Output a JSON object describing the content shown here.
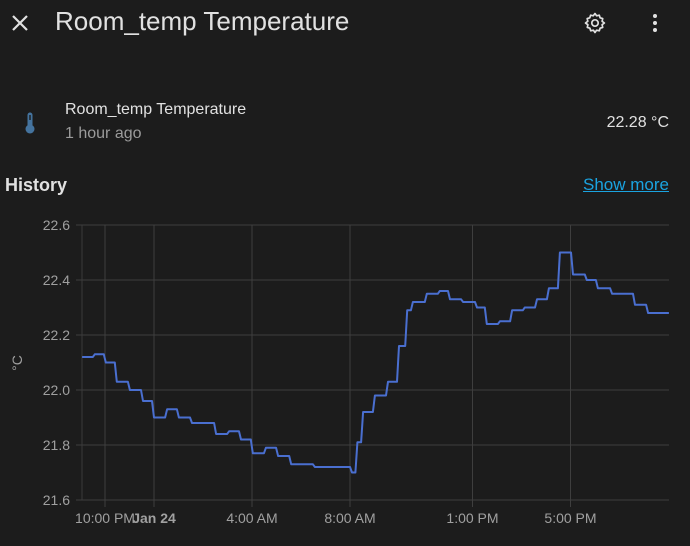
{
  "header": {
    "title": "Room_temp Temperature",
    "close_icon": "close-icon",
    "settings_icon": "gear-icon",
    "menu_icon": "dots-vertical-icon"
  },
  "entity": {
    "icon": "thermometer-icon",
    "icon_color": "#44739e",
    "name": "Room_temp Temperature",
    "last_changed": "1 hour ago",
    "state": "22.28 °C"
  },
  "history": {
    "title": "History",
    "show_more": "Show more",
    "link_color": "#1aa3e0"
  },
  "chart_data": {
    "type": "line",
    "step": true,
    "line_color": "#4a6fd0",
    "ylabel": "°C",
    "ylim": [
      21.6,
      22.6
    ],
    "y_ticks": [
      "22.6",
      "22.4",
      "22.2",
      "22.0",
      "21.8",
      "21.6"
    ],
    "xlim": [
      "Jan 23 21:04",
      "Jan 24 21:01"
    ],
    "x_ticks": [
      {
        "t": "Jan 23 22:00",
        "label": "10:00 PM",
        "bold": false
      },
      {
        "t": "Jan 24 00:00",
        "label": "Jan 24",
        "bold": true
      },
      {
        "t": "Jan 24 04:00",
        "label": "4:00 AM",
        "bold": false
      },
      {
        "t": "Jan 24 08:00",
        "label": "8:00 AM",
        "bold": false
      },
      {
        "t": "Jan 24 13:00",
        "label": "1:00 PM",
        "bold": false
      },
      {
        "t": "Jan 24 17:00",
        "label": "5:00 PM",
        "bold": false
      }
    ],
    "grid": true,
    "points": [
      [
        "Jan 23 21:04",
        22.12
      ],
      [
        "Jan 23 21:35",
        22.13
      ],
      [
        "Jan 23 22:02",
        22.1
      ],
      [
        "Jan 23 22:29",
        22.03
      ],
      [
        "Jan 23 23:01",
        22.0
      ],
      [
        "Jan 23 23:33",
        21.96
      ],
      [
        "Jan 24 00:00",
        21.9
      ],
      [
        "Jan 24 00:32",
        21.93
      ],
      [
        "Jan 24 01:01",
        21.9
      ],
      [
        "Jan 24 01:33",
        21.88
      ],
      [
        "Jan 24 02:32",
        21.84
      ],
      [
        "Jan 24 03:04",
        21.85
      ],
      [
        "Jan 24 03:33",
        21.82
      ],
      [
        "Jan 24 04:02",
        21.77
      ],
      [
        "Jan 24 04:34",
        21.79
      ],
      [
        "Jan 24 05:04",
        21.76
      ],
      [
        "Jan 24 05:36",
        21.73
      ],
      [
        "Jan 24 06:34",
        21.72
      ],
      [
        "Jan 24 08:05",
        21.7
      ],
      [
        "Jan 24 08:18",
        21.81
      ],
      [
        "Jan 24 08:32",
        21.92
      ],
      [
        "Jan 24 09:01",
        21.98
      ],
      [
        "Jan 24 09:33",
        22.03
      ],
      [
        "Jan 24 10:00",
        22.16
      ],
      [
        "Jan 24 10:20",
        22.29
      ],
      [
        "Jan 24 10:34",
        22.32
      ],
      [
        "Jan 24 11:08",
        22.35
      ],
      [
        "Jan 24 11:40",
        22.36
      ],
      [
        "Jan 24 12:05",
        22.33
      ],
      [
        "Jan 24 12:37",
        22.32
      ],
      [
        "Jan 24 13:11",
        22.3
      ],
      [
        "Jan 24 13:35",
        22.24
      ],
      [
        "Jan 24 14:07",
        22.25
      ],
      [
        "Jan 24 14:37",
        22.29
      ],
      [
        "Jan 24 15:08",
        22.3
      ],
      [
        "Jan 24 15:38",
        22.33
      ],
      [
        "Jan 24 16:07",
        22.37
      ],
      [
        "Jan 24 16:34",
        22.5
      ],
      [
        "Jan 24 17:06",
        22.42
      ],
      [
        "Jan 24 17:40",
        22.4
      ],
      [
        "Jan 24 18:07",
        22.37
      ],
      [
        "Jan 24 18:42",
        22.35
      ],
      [
        "Jan 24 19:38",
        22.31
      ],
      [
        "Jan 24 20:10",
        22.28
      ],
      [
        "Jan 24 21:01",
        22.28
      ]
    ]
  }
}
